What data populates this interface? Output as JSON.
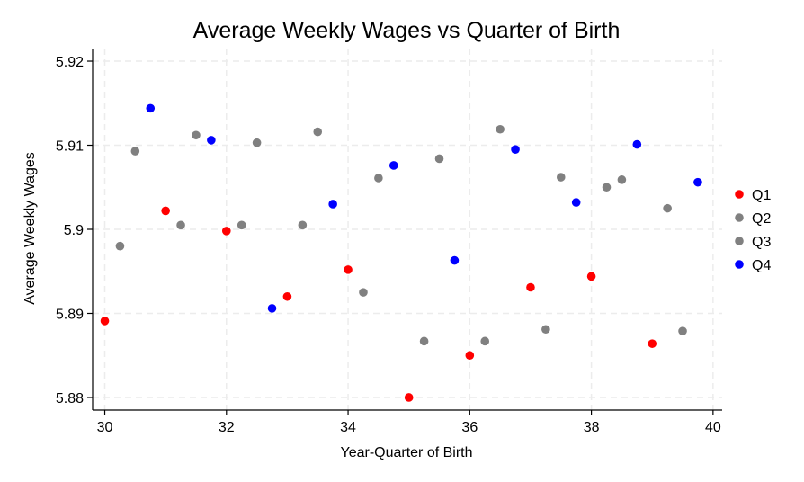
{
  "chart_data": {
    "type": "scatter",
    "title": "Average Weekly Wages vs Quarter of Birth",
    "xlabel": "Year-Quarter of Birth",
    "ylabel": "Average Weekly Wages",
    "xlim": [
      29.8,
      40.15
    ],
    "ylim": [
      5.8785,
      5.9215
    ],
    "xticks": [
      30,
      32,
      34,
      36,
      38,
      40
    ],
    "yticks": [
      5.88,
      5.89,
      5.9,
      5.91,
      5.92
    ],
    "ytick_labels": [
      "5.88",
      "5.89",
      "5.9",
      "5.91",
      "5.92"
    ],
    "grid": true,
    "legend_position": "right",
    "series": [
      {
        "name": "Q1",
        "color": "#ff0000",
        "points": [
          [
            30,
            5.8891
          ],
          [
            31,
            5.9022
          ],
          [
            32,
            5.8998
          ],
          [
            33,
            5.892
          ],
          [
            34,
            5.8952
          ],
          [
            35,
            5.88
          ],
          [
            36,
            5.885
          ],
          [
            37,
            5.8931
          ],
          [
            38,
            5.8944
          ],
          [
            39,
            5.8864
          ]
        ]
      },
      {
        "name": "Q2",
        "color": "#808080",
        "points": [
          [
            30.25,
            5.898
          ],
          [
            31.25,
            5.9005
          ],
          [
            32.25,
            5.9005
          ],
          [
            33.25,
            5.9005
          ],
          [
            34.25,
            5.8925
          ],
          [
            35.25,
            5.8867
          ],
          [
            36.25,
            5.8867
          ],
          [
            37.25,
            5.8881
          ],
          [
            38.25,
            5.905
          ],
          [
            39.25,
            5.9025
          ]
        ]
      },
      {
        "name": "Q3",
        "color": "#808080",
        "points": [
          [
            30.5,
            5.9093
          ],
          [
            31.5,
            5.9112
          ],
          [
            32.5,
            5.9103
          ],
          [
            33.5,
            5.9116
          ],
          [
            34.5,
            5.9061
          ],
          [
            35.5,
            5.9084
          ],
          [
            36.5,
            5.9119
          ],
          [
            37.5,
            5.9062
          ],
          [
            38.5,
            5.9059
          ],
          [
            39.5,
            5.8879
          ]
        ]
      },
      {
        "name": "Q4",
        "color": "#0000ff",
        "points": [
          [
            30.75,
            5.9144
          ],
          [
            31.75,
            5.9106
          ],
          [
            32.75,
            5.8906
          ],
          [
            33.75,
            5.903
          ],
          [
            34.75,
            5.9076
          ],
          [
            35.75,
            5.8963
          ],
          [
            36.75,
            5.9095
          ],
          [
            37.75,
            5.9032
          ],
          [
            38.75,
            5.9101
          ],
          [
            39.75,
            5.9056
          ]
        ]
      }
    ]
  }
}
